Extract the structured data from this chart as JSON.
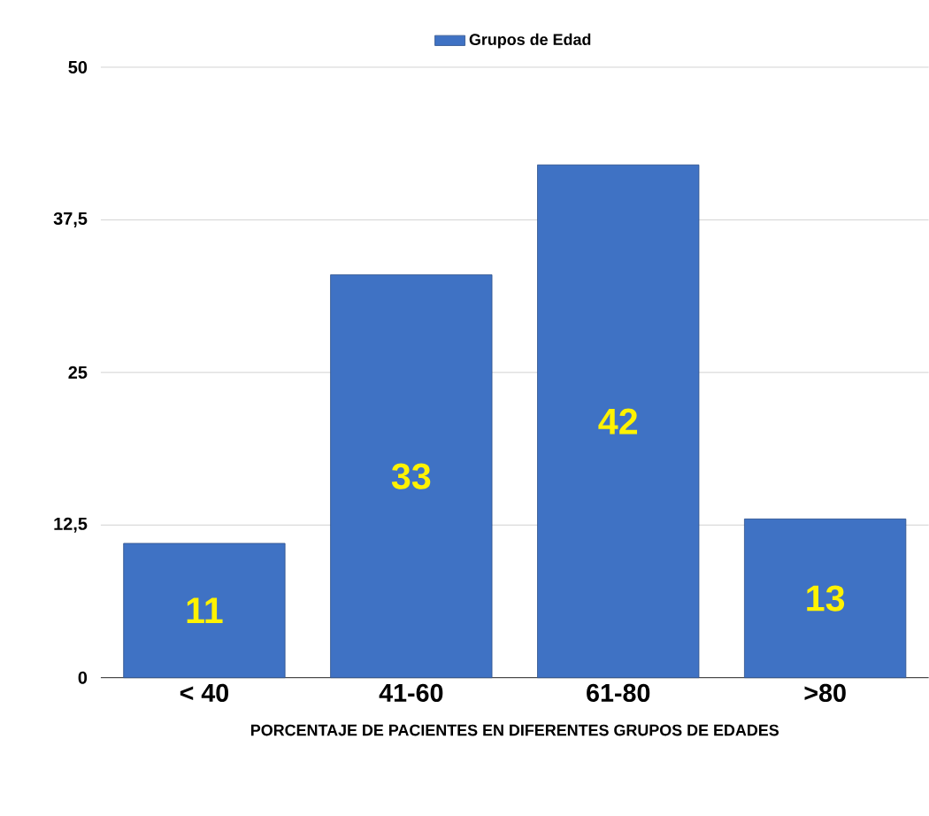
{
  "chart_data": {
    "type": "bar",
    "xlabel": "PORCENTAJE DE PACIENTES EN DIFERENTES GRUPOS DE EDADES",
    "categories": [
      "< 40",
      "41-60",
      "61-80",
      ">80"
    ],
    "series": [
      {
        "name": "Grupos de Edad",
        "color": "#3f72c4",
        "values": [
          11,
          33,
          42,
          13
        ]
      }
    ],
    "ylim": [
      0,
      50
    ],
    "yticks": [
      0,
      {
        "value": 12.5,
        "label": "12,5"
      },
      25,
      {
        "value": 37.5,
        "label": "37,5"
      },
      50
    ],
    "grid": "y",
    "legend": "top",
    "data_labels": true
  }
}
